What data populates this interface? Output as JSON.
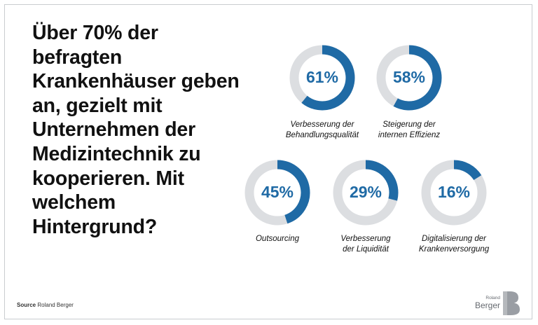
{
  "headline": "Über 70% der befragten Krankenhäuser geben an, gezielt mit Unternehmen der Medizintechnik zu kooperieren. Mit welchem Hintergrund?",
  "source": {
    "label": "Source",
    "value": "Roland Berger"
  },
  "logo": {
    "top": "Roland",
    "bottom": "Berger",
    "mark": "B"
  },
  "colors": {
    "accent": "#1f6aa5",
    "track": "#dcdee1",
    "text": "#111111"
  },
  "chart_data": {
    "type": "donut",
    "title": "Über 70% der befragten Krankenhäuser geben an, gezielt mit Unternehmen der Medizintechnik zu kooperieren. Mit welchem Hintergrund?",
    "categories": [
      "Verbesserung der Behandlungsqualität",
      "Steigerung der internen Effizienz",
      "Outsourcing",
      "Verbesserung der Liquidität",
      "Digitalisierung der Krankenversorgung"
    ],
    "values": [
      61,
      58,
      45,
      29,
      16
    ],
    "unit": "%",
    "ylim": [
      0,
      100
    ],
    "items": [
      {
        "label": "61%",
        "value": 61,
        "caption": [
          "Verbesserung der",
          "Behandlungsqualität"
        ]
      },
      {
        "label": "58%",
        "value": 58,
        "caption": [
          "Steigerung der",
          "internen Effizienz"
        ]
      },
      {
        "label": "45%",
        "value": 45,
        "caption": [
          "Outsourcing"
        ]
      },
      {
        "label": "29%",
        "value": 29,
        "caption": [
          "Verbesserung",
          "der Liquidität"
        ]
      },
      {
        "label": "16%",
        "value": 16,
        "caption": [
          "Digitalisierung der",
          "Krankenversorgung"
        ]
      }
    ]
  }
}
